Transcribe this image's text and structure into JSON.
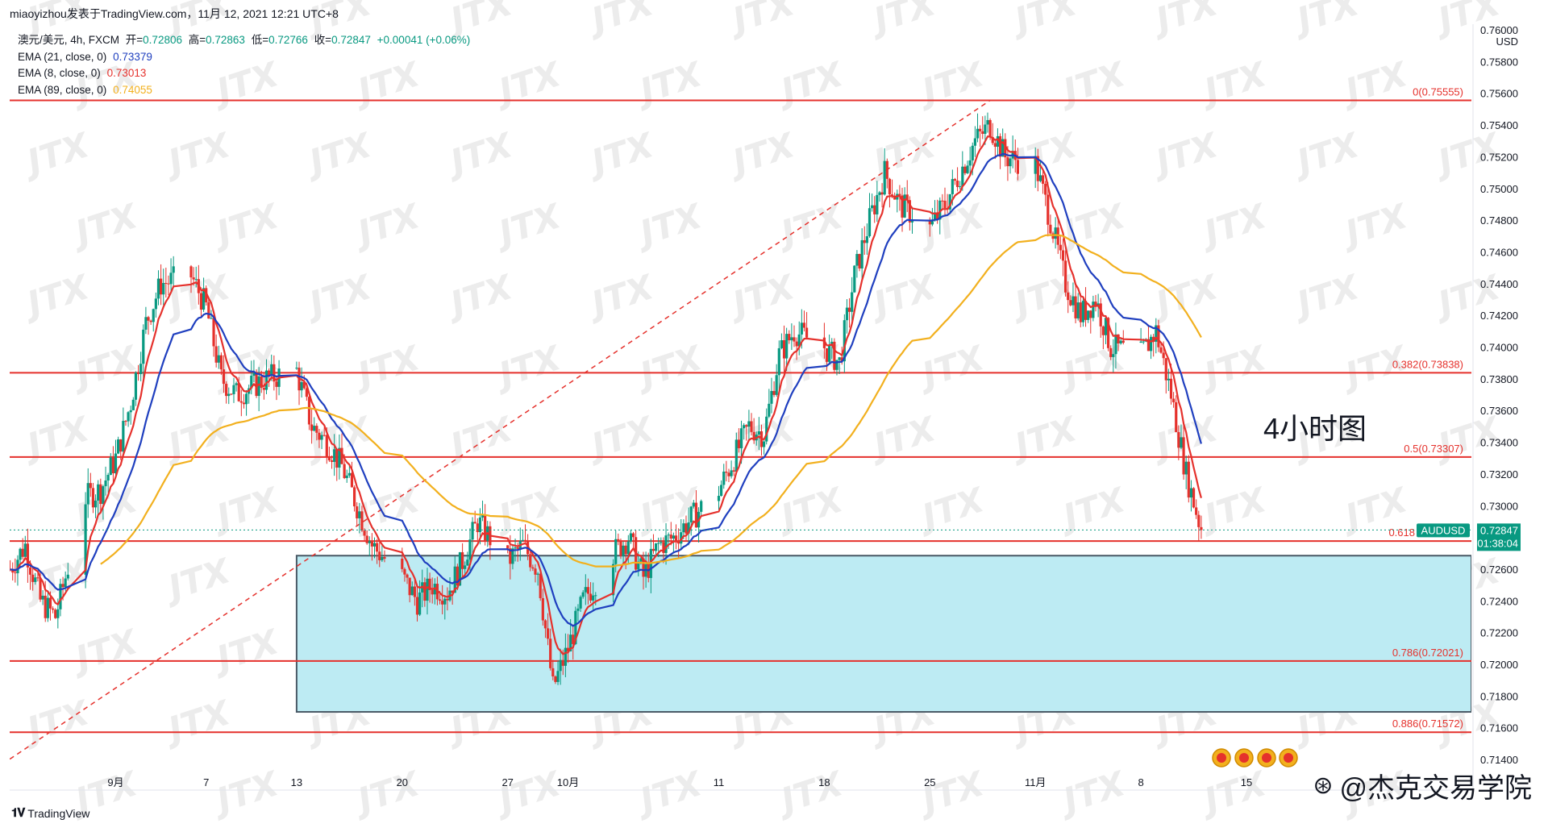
{
  "header": {
    "publisher": "miaoyizhou发表于TradingView.com，11月 12, 2021 12:21 UTC+8"
  },
  "legend": {
    "symbol": "澳元/美元, 4h, FXCM",
    "open_label": "开=",
    "open": "0.72806",
    "high_label": "高=",
    "high": "0.72863",
    "low_label": "低=",
    "low": "0.72766",
    "close_label": "收=",
    "close": "0.72847",
    "change": "+0.00041 (+0.06%)",
    "ema21_label": "EMA (21, close, 0)",
    "ema21_value": "0.73379",
    "ema8_label": "EMA (8, close, 0)",
    "ema8_value": "0.73013",
    "ema89_label": "EMA (89, close, 0)",
    "ema89_value": "0.74055"
  },
  "price_axis": {
    "currency": "USD",
    "current_symbol": "AUDUSD",
    "current_price": "0.72847",
    "countdown": "01:38:04"
  },
  "annotation": "4小时图",
  "credit": "@杰克交易学院",
  "branding": "TradingView",
  "colors": {
    "up": "#089981",
    "down": "#e5312c",
    "ema8": "#e5312c",
    "ema21": "#1f3fbf",
    "ema89": "#f2b01e",
    "fib_line": "#e5312c",
    "zone_fill": "#bdebf3",
    "zone_border": "#4a5a66",
    "watermark": "#ececec"
  },
  "chart_data": {
    "type": "candlestick",
    "title": "",
    "symbol": "AUDUSD",
    "timeframe": "4h",
    "ylim": [
      0.713,
      0.7605
    ],
    "y_ticks": [
      0.714,
      0.716,
      0.718,
      0.72,
      0.722,
      0.724,
      0.726,
      0.728,
      0.73,
      0.732,
      0.734,
      0.736,
      0.738,
      0.74,
      0.742,
      0.744,
      0.746,
      0.748,
      0.75,
      0.752,
      0.754,
      0.756,
      0.758,
      0.76
    ],
    "y_tick_labels": [
      "0.71400",
      "0.71600",
      "0.71800",
      "0.72000",
      "0.72200",
      "0.72400",
      "0.72600",
      "0.72800",
      "0.73000",
      "0.73200",
      "0.73400",
      "0.73600",
      "0.73800",
      "0.74000",
      "0.74200",
      "0.74400",
      "0.74600",
      "0.74800",
      "0.75000",
      "0.75200",
      "0.75400",
      "0.75600",
      "0.75800",
      "0.76000"
    ],
    "x_ticks": [
      {
        "label": "9月",
        "day": "2021-09-01"
      },
      {
        "label": "7",
        "day": "2021-09-07"
      },
      {
        "label": "13",
        "day": "2021-09-13"
      },
      {
        "label": "20",
        "day": "2021-09-20"
      },
      {
        "label": "27",
        "day": "2021-09-27"
      },
      {
        "label": "10月",
        "day": "2021-10-01"
      },
      {
        "label": "11",
        "day": "2021-10-11"
      },
      {
        "label": "18",
        "day": "2021-10-18"
      },
      {
        "label": "25",
        "day": "2021-10-25"
      },
      {
        "label": "11月",
        "day": "2021-11-01"
      },
      {
        "label": "8",
        "day": "2021-11-08"
      },
      {
        "label": "15",
        "day": "2021-11-15"
      }
    ],
    "fib_levels": [
      {
        "ratio": "0",
        "price": 0.75555,
        "label": "0(0.75555)"
      },
      {
        "ratio": "0.382",
        "price": 0.73838,
        "label": "0.382(0.73838)"
      },
      {
        "ratio": "0.5",
        "price": 0.73307,
        "label": "0.5(0.73307)"
      },
      {
        "ratio": "0.618",
        "price": 0.72777,
        "label": "0.618"
      },
      {
        "ratio": "0.786",
        "price": 0.72021,
        "label": "0.786(0.72021)"
      },
      {
        "ratio": "0.886",
        "price": 0.71572,
        "label": "0.886(0.71572)"
      }
    ],
    "demand_zone": {
      "start": "2021-09-13",
      "end": "2021-11-17",
      "top": 0.72685,
      "bottom": 0.717
    },
    "trendline": {
      "from": {
        "day": "2021-08-24",
        "price": 0.7134
      },
      "to": {
        "day": "2021-10-29",
        "price": 0.75555
      },
      "style": "dashed"
    },
    "price_path": [
      [
        "2021-08-25",
        0.726
      ],
      [
        "2021-08-26",
        0.7275
      ],
      [
        "2021-08-27",
        0.724
      ],
      [
        "2021-08-28",
        0.723
      ],
      [
        "2021-08-30",
        0.7305
      ],
      [
        "2021-08-31",
        0.731
      ],
      [
        "2021-09-01",
        0.733
      ],
      [
        "2021-09-02",
        0.7365
      ],
      [
        "2021-09-03",
        0.7415
      ],
      [
        "2021-09-04",
        0.744
      ],
      [
        "2021-09-06",
        0.7445
      ],
      [
        "2021-09-07",
        0.7425
      ],
      [
        "2021-09-08",
        0.738
      ],
      [
        "2021-09-09",
        0.737
      ],
      [
        "2021-09-10",
        0.7375
      ],
      [
        "2021-09-11",
        0.738
      ],
      [
        "2021-09-13",
        0.7385
      ],
      [
        "2021-09-14",
        0.735
      ],
      [
        "2021-09-15",
        0.734
      ],
      [
        "2021-09-16",
        0.7325
      ],
      [
        "2021-09-17",
        0.73
      ],
      [
        "2021-09-18",
        0.7275
      ],
      [
        "2021-09-20",
        0.7255
      ],
      [
        "2021-09-21",
        0.724
      ],
      [
        "2021-09-22",
        0.725
      ],
      [
        "2021-09-23",
        0.7245
      ],
      [
        "2021-09-24",
        0.7265
      ],
      [
        "2021-09-25",
        0.729
      ],
      [
        "2021-09-27",
        0.7265
      ],
      [
        "2021-09-28",
        0.7275
      ],
      [
        "2021-09-29",
        0.726
      ],
      [
        "2021-09-30",
        0.7185
      ],
      [
        "2021-10-01",
        0.721
      ],
      [
        "2021-10-02",
        0.724
      ],
      [
        "2021-10-04",
        0.727
      ],
      [
        "2021-10-05",
        0.728
      ],
      [
        "2021-10-06",
        0.7255
      ],
      [
        "2021-10-07",
        0.7275
      ],
      [
        "2021-10-08",
        0.728
      ],
      [
        "2021-10-09",
        0.729
      ],
      [
        "2021-10-11",
        0.731
      ],
      [
        "2021-10-12",
        0.733
      ],
      [
        "2021-10-13",
        0.735
      ],
      [
        "2021-10-14",
        0.7345
      ],
      [
        "2021-10-15",
        0.7395
      ],
      [
        "2021-10-16",
        0.741
      ],
      [
        "2021-10-18",
        0.74
      ],
      [
        "2021-10-19",
        0.739
      ],
      [
        "2021-10-20",
        0.7445
      ],
      [
        "2021-10-21",
        0.748
      ],
      [
        "2021-10-22",
        0.751
      ],
      [
        "2021-10-23",
        0.749
      ],
      [
        "2021-10-25",
        0.7475
      ],
      [
        "2021-10-26",
        0.749
      ],
      [
        "2021-10-27",
        0.751
      ],
      [
        "2021-10-28",
        0.753
      ],
      [
        "2021-10-29",
        0.754
      ],
      [
        "2021-10-30",
        0.752
      ],
      [
        "2021-11-01",
        0.7515
      ],
      [
        "2021-11-02",
        0.748
      ],
      [
        "2021-11-03",
        0.744
      ],
      [
        "2021-11-04",
        0.742
      ],
      [
        "2021-11-05",
        0.743
      ],
      [
        "2021-11-06",
        0.74
      ],
      [
        "2021-11-08",
        0.7395
      ],
      [
        "2021-11-09",
        0.741
      ],
      [
        "2021-11-10",
        0.737
      ],
      [
        "2021-11-11",
        0.732
      ],
      [
        "2021-11-12",
        0.72847
      ]
    ]
  }
}
